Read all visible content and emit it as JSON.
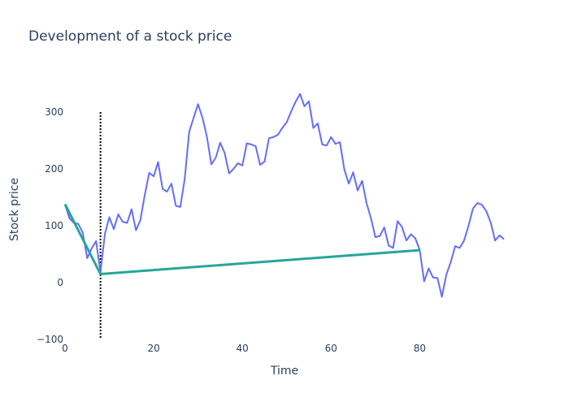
{
  "chart_data": {
    "type": "line",
    "title": "Development of a stock price",
    "xlabel": "Time",
    "ylabel": "Stock price",
    "xlim": [
      0,
      99
    ],
    "ylim": [
      -100,
      350
    ],
    "x_ticks": [
      0,
      20,
      40,
      60,
      80
    ],
    "y_ticks": [
      -100,
      0,
      100,
      200,
      300
    ],
    "y_tick_labels": [
      "−100",
      "0",
      "100",
      "200",
      "300"
    ],
    "grid": false,
    "legend": "none",
    "colors": {
      "price": "#636efa",
      "trend": "#26a69a",
      "marker": "#000000",
      "text": "#2a3f5f"
    },
    "series": [
      {
        "role": "price",
        "x": [
          0,
          1,
          2,
          3,
          4,
          5,
          6,
          7,
          8,
          9,
          10,
          11,
          12,
          13,
          14,
          15,
          16,
          17,
          18,
          19,
          20,
          21,
          22,
          23,
          24,
          25,
          26,
          27,
          28,
          29,
          30,
          31,
          32,
          33,
          34,
          35,
          36,
          37,
          38,
          39,
          40,
          41,
          42,
          43,
          44,
          45,
          46,
          47,
          48,
          49,
          50,
          51,
          52,
          53,
          54,
          55,
          56,
          57,
          58,
          59,
          60,
          61,
          62,
          63,
          64,
          65,
          66,
          67,
          68,
          69,
          70,
          71,
          72,
          73,
          74,
          75,
          76,
          77,
          78,
          79,
          80,
          81,
          82,
          83,
          84,
          85,
          86,
          87,
          88,
          89,
          90,
          91,
          92,
          93,
          94,
          95,
          96,
          97,
          98,
          99
        ],
        "y": [
          137,
          113,
          105,
          103,
          88,
          43,
          60,
          73,
          18,
          86,
          115,
          94,
          120,
          107,
          105,
          129,
          92,
          110,
          155,
          193,
          187,
          212,
          165,
          160,
          174,
          135,
          133,
          183,
          265,
          290,
          314,
          290,
          257,
          208,
          220,
          246,
          228,
          192,
          200,
          210,
          206,
          245,
          243,
          240,
          207,
          213,
          254,
          256,
          260,
          272,
          282,
          301,
          318,
          332,
          310,
          319,
          272,
          280,
          243,
          241,
          256,
          244,
          247,
          199,
          174,
          194,
          162,
          179,
          140,
          113,
          80,
          82,
          97,
          65,
          61,
          108,
          98,
          74,
          85,
          78,
          57,
          2,
          25,
          9,
          8,
          -25,
          14,
          36,
          64,
          61,
          74,
          100,
          130,
          140,
          137,
          126,
          106,
          74,
          83,
          76
        ]
      },
      {
        "role": "trend",
        "x": [
          0,
          8,
          80
        ],
        "y": [
          138,
          15,
          57
        ]
      }
    ],
    "annotations": [
      {
        "type": "vertical-dotted-line",
        "x": 8,
        "y_from": -100,
        "y_to": 300
      }
    ]
  }
}
